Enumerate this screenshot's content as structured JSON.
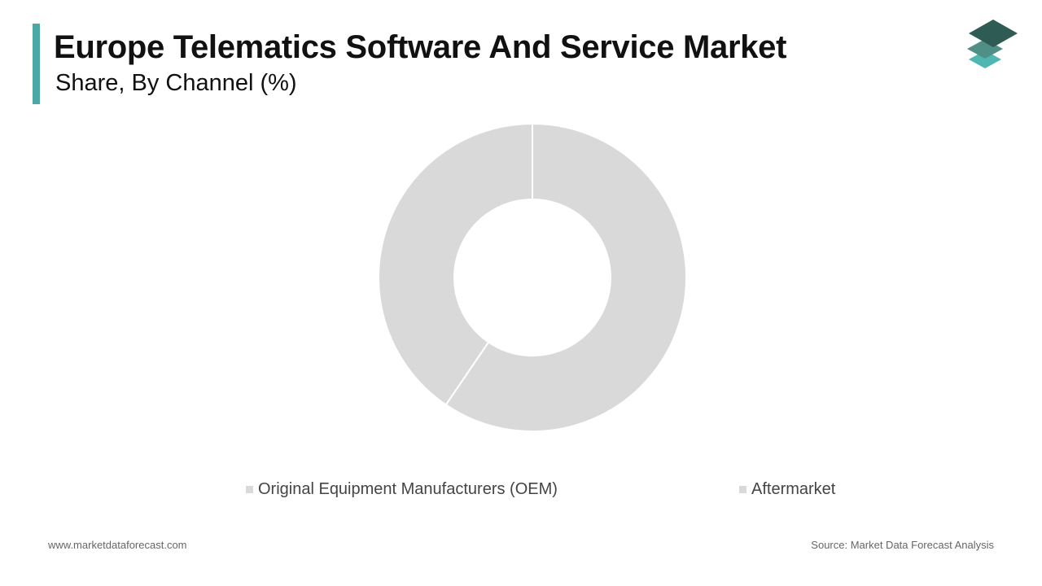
{
  "header": {
    "title": "Europe Telematics Software And Service Market",
    "subtitle": "Share, By Channel (%)",
    "accent_color": "#4aa9a6"
  },
  "logo": {
    "icon": "stacked-layers-logo-icon",
    "colors": [
      "#2f5b55",
      "#4f8f86",
      "#4fb7b2"
    ]
  },
  "chart_data": {
    "type": "pie",
    "variant": "donut",
    "series": [
      {
        "name": "Original Equipment Manufacturers (OEM)",
        "value": 59.5
      },
      {
        "name": "Aftermarket",
        "value": 40.5
      }
    ],
    "slice_color": "#d9d9d9",
    "legend_position": "bottom"
  },
  "footer": {
    "website": "www.marketdataforecast.com",
    "source": "Source: Market Data Forecast Analysis"
  }
}
